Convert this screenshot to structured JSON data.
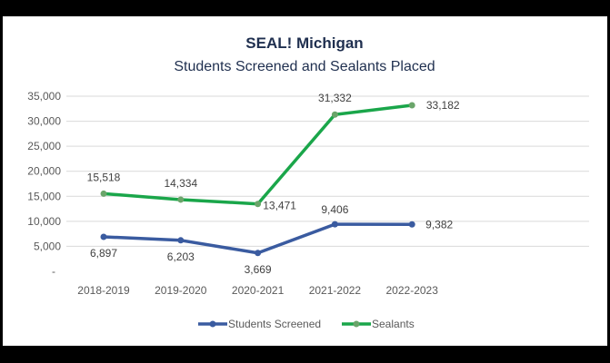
{
  "chart_data": {
    "type": "line",
    "title": "SEAL! Michigan",
    "subtitle": "Students Screened and Sealants Placed",
    "categories": [
      "2018-2019",
      "2019-2020",
      "2020-2021",
      "2021-2022",
      "2022-2023"
    ],
    "series": [
      {
        "name": "Students Screened",
        "color": "#3a5ba0",
        "values": [
          6897,
          6203,
          3669,
          9406,
          9382
        ],
        "labels": [
          "6,897",
          "6,203",
          "3,669",
          "9,406",
          "9,382"
        ]
      },
      {
        "name": "Sealants",
        "color": "#1aa64a",
        "marker_color": "#6aa56a",
        "values": [
          15518,
          14334,
          13471,
          31332,
          33182
        ],
        "labels": [
          "15,518",
          "14,334",
          "13,471",
          "31,332",
          "33,182"
        ]
      }
    ],
    "yticks": [
      "-",
      "5,000",
      "10,000",
      "15,000",
      "20,000",
      "25,000",
      "30,000",
      "35,000"
    ],
    "ylim": [
      0,
      35000
    ],
    "grid": true,
    "legend": "bottom"
  }
}
